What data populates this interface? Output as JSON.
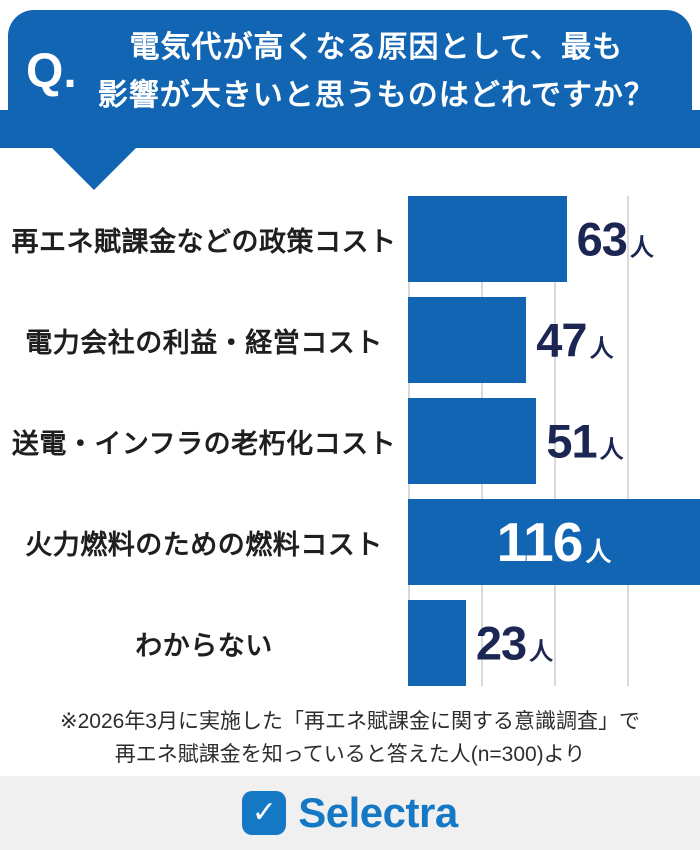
{
  "header": {
    "q_label": "Q.",
    "title_line1": "電気代が高くなる原因として、最も",
    "title_line2": "影響が大きいと思うものはどれですか？",
    "banner_color": "#1165b2"
  },
  "chart_data": {
    "type": "bar",
    "orientation": "horizontal",
    "title": "電気代が高くなる原因として、最も影響が大きいと思うものはどれですか？",
    "categories": [
      "再エネ賦課金などの政策コスト",
      "電力会社の利益・経営コスト",
      "送電・インフラの老朽化コスト",
      "火力燃料のための燃料コスト",
      "わからない"
    ],
    "values": [
      63,
      47,
      51,
      116,
      23
    ],
    "unit": "人",
    "max_value": 116,
    "bar_color": "#1165b2",
    "value_color": "#1b2653",
    "grid": "vertical-lines",
    "legend": "none"
  },
  "footnote": {
    "line1": "※2026年3月に実施した「再エネ賦課金に関する意識調査」で",
    "line2": "再エネ賦課金を知っていると答えた人(n=300)より"
  },
  "footer": {
    "brand": "Selectra",
    "logo_check": "✓",
    "brand_color": "#1478c4",
    "background": "#f0f0f0"
  }
}
